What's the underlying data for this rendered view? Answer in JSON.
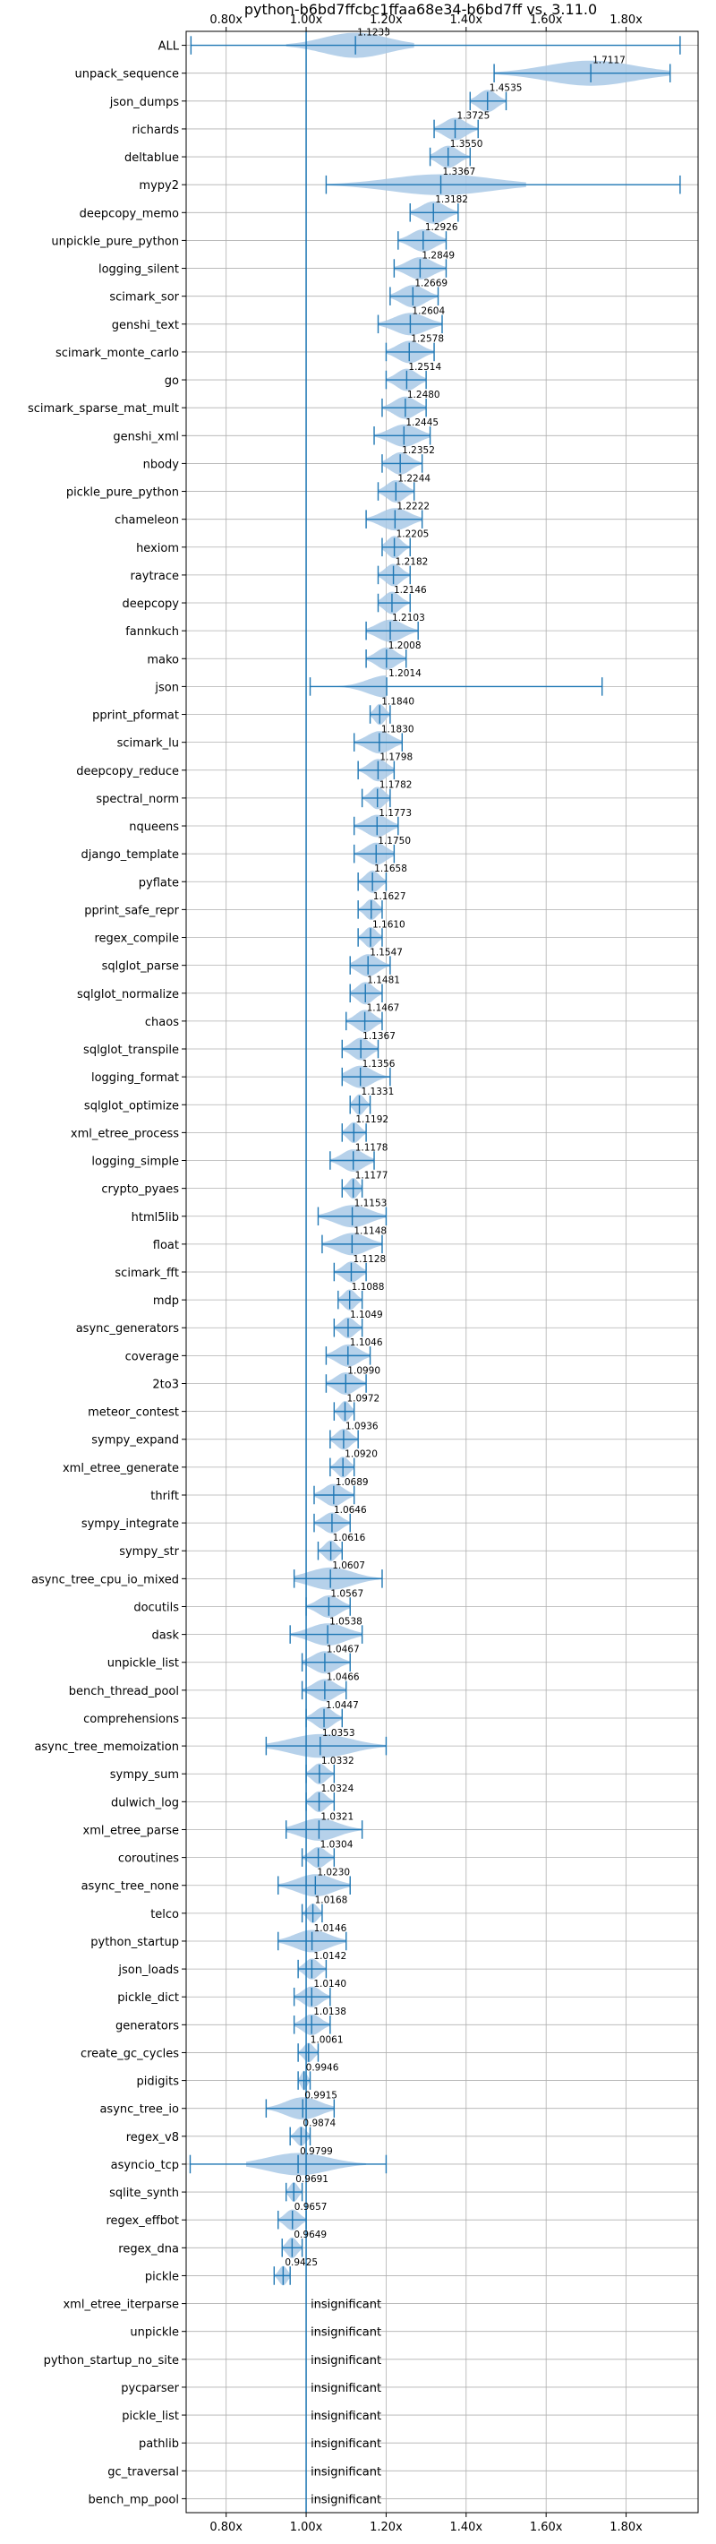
{
  "chart_data": {
    "type": "violin",
    "title": "python-b6bd7ffcbc1ffaa68e34-b6bd7ff vs. 3.11.0",
    "xlabel": "",
    "ylabel": "",
    "xlim": [
      0.7,
      1.98
    ],
    "x_ticks": [
      0.8,
      1.0,
      1.2,
      1.4,
      1.6,
      1.8
    ],
    "x_tick_labels": [
      "0.80x",
      "1.00x",
      "1.20x",
      "1.40x",
      "1.60x",
      "1.80x"
    ],
    "grid": true,
    "reference_line": 1.0,
    "insignificant_label": "insignificant",
    "colors": {
      "violin": "#a9c9e6",
      "line": "#1f77b4",
      "grid": "#b0b0b0"
    },
    "benchmarks": [
      {
        "name": "ALL",
        "value": "1.1233",
        "mean": 1.1233,
        "min": 0.712,
        "max": 1.935,
        "kde_lo": 0.95,
        "kde_hi": 1.27,
        "width": 0.9
      },
      {
        "name": "unpack_sequence",
        "value": "1.7117",
        "mean": 1.7117,
        "min": 1.47,
        "max": 1.91,
        "kde_lo": 1.47,
        "kde_hi": 1.91,
        "width": 0.9
      },
      {
        "name": "json_dumps",
        "value": "1.4535",
        "mean": 1.4535,
        "min": 1.41,
        "max": 1.5,
        "kde_lo": 1.41,
        "kde_hi": 1.5,
        "width": 0.8
      },
      {
        "name": "richards",
        "value": "1.3725",
        "mean": 1.3725,
        "min": 1.32,
        "max": 1.43,
        "kde_lo": 1.32,
        "kde_hi": 1.43,
        "width": 0.8
      },
      {
        "name": "deltablue",
        "value": "1.3550",
        "mean": 1.355,
        "min": 1.31,
        "max": 1.41,
        "kde_lo": 1.31,
        "kde_hi": 1.41,
        "width": 0.8
      },
      {
        "name": "mypy2",
        "value": "1.3367",
        "mean": 1.3367,
        "min": 1.05,
        "max": 1.935,
        "kde_lo": 1.05,
        "kde_hi": 1.55,
        "width": 0.75
      },
      {
        "name": "deepcopy_memo",
        "value": "1.3182",
        "mean": 1.3182,
        "min": 1.26,
        "max": 1.38,
        "kde_lo": 1.26,
        "kde_hi": 1.38,
        "width": 0.8
      },
      {
        "name": "unpickle_pure_python",
        "value": "1.2926",
        "mean": 1.2926,
        "min": 1.23,
        "max": 1.35,
        "kde_lo": 1.23,
        "kde_hi": 1.35,
        "width": 0.8
      },
      {
        "name": "logging_silent",
        "value": "1.2849",
        "mean": 1.2849,
        "min": 1.22,
        "max": 1.35,
        "kde_lo": 1.22,
        "kde_hi": 1.35,
        "width": 0.8
      },
      {
        "name": "scimark_sor",
        "value": "1.2669",
        "mean": 1.2669,
        "min": 1.21,
        "max": 1.33,
        "kde_lo": 1.21,
        "kde_hi": 1.33,
        "width": 0.8
      },
      {
        "name": "genshi_text",
        "value": "1.2604",
        "mean": 1.2604,
        "min": 1.18,
        "max": 1.34,
        "kde_lo": 1.18,
        "kde_hi": 1.34,
        "width": 0.8
      },
      {
        "name": "scimark_monte_carlo",
        "value": "1.2578",
        "mean": 1.2578,
        "min": 1.2,
        "max": 1.32,
        "kde_lo": 1.2,
        "kde_hi": 1.32,
        "width": 0.8
      },
      {
        "name": "go",
        "value": "1.2514",
        "mean": 1.2514,
        "min": 1.2,
        "max": 1.3,
        "kde_lo": 1.2,
        "kde_hi": 1.3,
        "width": 0.8
      },
      {
        "name": "scimark_sparse_mat_mult",
        "value": "1.2480",
        "mean": 1.248,
        "min": 1.19,
        "max": 1.3,
        "kde_lo": 1.19,
        "kde_hi": 1.3,
        "width": 0.8
      },
      {
        "name": "genshi_xml",
        "value": "1.2445",
        "mean": 1.2445,
        "min": 1.17,
        "max": 1.31,
        "kde_lo": 1.17,
        "kde_hi": 1.31,
        "width": 0.8
      },
      {
        "name": "nbody",
        "value": "1.2352",
        "mean": 1.2352,
        "min": 1.19,
        "max": 1.29,
        "kde_lo": 1.19,
        "kde_hi": 1.29,
        "width": 0.8
      },
      {
        "name": "pickle_pure_python",
        "value": "1.2244",
        "mean": 1.2244,
        "min": 1.18,
        "max": 1.27,
        "kde_lo": 1.18,
        "kde_hi": 1.27,
        "width": 0.8
      },
      {
        "name": "chameleon",
        "value": "1.2222",
        "mean": 1.2222,
        "min": 1.15,
        "max": 1.29,
        "kde_lo": 1.15,
        "kde_hi": 1.29,
        "width": 0.8
      },
      {
        "name": "hexiom",
        "value": "1.2205",
        "mean": 1.2205,
        "min": 1.19,
        "max": 1.26,
        "kde_lo": 1.19,
        "kde_hi": 1.26,
        "width": 0.8
      },
      {
        "name": "raytrace",
        "value": "1.2182",
        "mean": 1.2182,
        "min": 1.18,
        "max": 1.26,
        "kde_lo": 1.18,
        "kde_hi": 1.26,
        "width": 0.8
      },
      {
        "name": "deepcopy",
        "value": "1.2146",
        "mean": 1.2146,
        "min": 1.18,
        "max": 1.26,
        "kde_lo": 1.18,
        "kde_hi": 1.26,
        "width": 0.8
      },
      {
        "name": "fannkuch",
        "value": "1.2103",
        "mean": 1.2103,
        "min": 1.15,
        "max": 1.28,
        "kde_lo": 1.15,
        "kde_hi": 1.28,
        "width": 0.8
      },
      {
        "name": "mako",
        "value": "1.2008",
        "mean": 1.2008,
        "min": 1.15,
        "max": 1.25,
        "kde_lo": 1.15,
        "kde_hi": 1.25,
        "width": 0.8
      },
      {
        "name": "json",
        "value": "1.2014",
        "mean": 1.2014,
        "min": 1.01,
        "max": 1.74,
        "kde_lo": 1.01,
        "kde_hi": 1.2,
        "width": 0.8
      },
      {
        "name": "pprint_pformat",
        "value": "1.1840",
        "mean": 1.184,
        "min": 1.16,
        "max": 1.21,
        "kde_lo": 1.16,
        "kde_hi": 1.21,
        "width": 0.75
      },
      {
        "name": "scimark_lu",
        "value": "1.1830",
        "mean": 1.183,
        "min": 1.12,
        "max": 1.24,
        "kde_lo": 1.12,
        "kde_hi": 1.24,
        "width": 0.8
      },
      {
        "name": "deepcopy_reduce",
        "value": "1.1798",
        "mean": 1.1798,
        "min": 1.13,
        "max": 1.22,
        "kde_lo": 1.13,
        "kde_hi": 1.22,
        "width": 0.8
      },
      {
        "name": "spectral_norm",
        "value": "1.1782",
        "mean": 1.1782,
        "min": 1.14,
        "max": 1.21,
        "kde_lo": 1.14,
        "kde_hi": 1.21,
        "width": 0.8
      },
      {
        "name": "nqueens",
        "value": "1.1773",
        "mean": 1.1773,
        "min": 1.12,
        "max": 1.23,
        "kde_lo": 1.12,
        "kde_hi": 1.23,
        "width": 0.8
      },
      {
        "name": "django_template",
        "value": "1.1750",
        "mean": 1.175,
        "min": 1.12,
        "max": 1.22,
        "kde_lo": 1.12,
        "kde_hi": 1.22,
        "width": 0.8
      },
      {
        "name": "pyflate",
        "value": "1.1658",
        "mean": 1.1658,
        "min": 1.13,
        "max": 1.2,
        "kde_lo": 1.13,
        "kde_hi": 1.2,
        "width": 0.8
      },
      {
        "name": "pprint_safe_repr",
        "value": "1.1627",
        "mean": 1.1627,
        "min": 1.13,
        "max": 1.19,
        "kde_lo": 1.13,
        "kde_hi": 1.19,
        "width": 0.75
      },
      {
        "name": "regex_compile",
        "value": "1.1610",
        "mean": 1.161,
        "min": 1.13,
        "max": 1.19,
        "kde_lo": 1.13,
        "kde_hi": 1.19,
        "width": 0.75
      },
      {
        "name": "sqlglot_parse",
        "value": "1.1547",
        "mean": 1.1547,
        "min": 1.11,
        "max": 1.21,
        "kde_lo": 1.11,
        "kde_hi": 1.21,
        "width": 0.8
      },
      {
        "name": "sqlglot_normalize",
        "value": "1.1481",
        "mean": 1.1481,
        "min": 1.11,
        "max": 1.19,
        "kde_lo": 1.11,
        "kde_hi": 1.19,
        "width": 0.8
      },
      {
        "name": "chaos",
        "value": "1.1467",
        "mean": 1.1467,
        "min": 1.1,
        "max": 1.19,
        "kde_lo": 1.1,
        "kde_hi": 1.19,
        "width": 0.8
      },
      {
        "name": "sqlglot_transpile",
        "value": "1.1367",
        "mean": 1.1367,
        "min": 1.09,
        "max": 1.18,
        "kde_lo": 1.09,
        "kde_hi": 1.18,
        "width": 0.8
      },
      {
        "name": "logging_format",
        "value": "1.1356",
        "mean": 1.1356,
        "min": 1.09,
        "max": 1.21,
        "kde_lo": 1.09,
        "kde_hi": 1.21,
        "width": 0.8
      },
      {
        "name": "sqlglot_optimize",
        "value": "1.1331",
        "mean": 1.1331,
        "min": 1.11,
        "max": 1.16,
        "kde_lo": 1.11,
        "kde_hi": 1.16,
        "width": 0.75
      },
      {
        "name": "xml_etree_process",
        "value": "1.1192",
        "mean": 1.1192,
        "min": 1.09,
        "max": 1.15,
        "kde_lo": 1.09,
        "kde_hi": 1.15,
        "width": 0.75
      },
      {
        "name": "logging_simple",
        "value": "1.1178",
        "mean": 1.1178,
        "min": 1.06,
        "max": 1.17,
        "kde_lo": 1.06,
        "kde_hi": 1.17,
        "width": 0.8
      },
      {
        "name": "crypto_pyaes",
        "value": "1.1177",
        "mean": 1.1177,
        "min": 1.09,
        "max": 1.14,
        "kde_lo": 1.09,
        "kde_hi": 1.14,
        "width": 0.75
      },
      {
        "name": "html5lib",
        "value": "1.1153",
        "mean": 1.1153,
        "min": 1.03,
        "max": 1.2,
        "kde_lo": 1.03,
        "kde_hi": 1.2,
        "width": 0.8
      },
      {
        "name": "float",
        "value": "1.1148",
        "mean": 1.1148,
        "min": 1.04,
        "max": 1.19,
        "kde_lo": 1.04,
        "kde_hi": 1.19,
        "width": 0.8
      },
      {
        "name": "scimark_fft",
        "value": "1.1128",
        "mean": 1.1128,
        "min": 1.07,
        "max": 1.15,
        "kde_lo": 1.07,
        "kde_hi": 1.15,
        "width": 0.75
      },
      {
        "name": "mdp",
        "value": "1.1088",
        "mean": 1.1088,
        "min": 1.08,
        "max": 1.14,
        "kde_lo": 1.08,
        "kde_hi": 1.14,
        "width": 0.75
      },
      {
        "name": "async_generators",
        "value": "1.1049",
        "mean": 1.1049,
        "min": 1.07,
        "max": 1.14,
        "kde_lo": 1.07,
        "kde_hi": 1.14,
        "width": 0.75
      },
      {
        "name": "coverage",
        "value": "1.1046",
        "mean": 1.1046,
        "min": 1.05,
        "max": 1.16,
        "kde_lo": 1.05,
        "kde_hi": 1.16,
        "width": 0.8
      },
      {
        "name": "2to3",
        "value": "1.0990",
        "mean": 1.099,
        "min": 1.05,
        "max": 1.15,
        "kde_lo": 1.05,
        "kde_hi": 1.15,
        "width": 0.8
      },
      {
        "name": "meteor_contest",
        "value": "1.0972",
        "mean": 1.0972,
        "min": 1.07,
        "max": 1.12,
        "kde_lo": 1.07,
        "kde_hi": 1.12,
        "width": 0.75
      },
      {
        "name": "sympy_expand",
        "value": "1.0936",
        "mean": 1.0936,
        "min": 1.06,
        "max": 1.13,
        "kde_lo": 1.06,
        "kde_hi": 1.13,
        "width": 0.75
      },
      {
        "name": "xml_etree_generate",
        "value": "1.0920",
        "mean": 1.092,
        "min": 1.06,
        "max": 1.12,
        "kde_lo": 1.06,
        "kde_hi": 1.12,
        "width": 0.75
      },
      {
        "name": "thrift",
        "value": "1.0689",
        "mean": 1.0689,
        "min": 1.02,
        "max": 1.12,
        "kde_lo": 1.02,
        "kde_hi": 1.12,
        "width": 0.8
      },
      {
        "name": "sympy_integrate",
        "value": "1.0646",
        "mean": 1.0646,
        "min": 1.02,
        "max": 1.11,
        "kde_lo": 1.02,
        "kde_hi": 1.11,
        "width": 0.75
      },
      {
        "name": "sympy_str",
        "value": "1.0616",
        "mean": 1.0616,
        "min": 1.03,
        "max": 1.09,
        "kde_lo": 1.03,
        "kde_hi": 1.09,
        "width": 0.75
      },
      {
        "name": "async_tree_cpu_io_mixed",
        "value": "1.0607",
        "mean": 1.0607,
        "min": 0.97,
        "max": 1.19,
        "kde_lo": 0.97,
        "kde_hi": 1.19,
        "width": 0.8
      },
      {
        "name": "docutils",
        "value": "1.0567",
        "mean": 1.0567,
        "min": 1.0,
        "max": 1.11,
        "kde_lo": 1.0,
        "kde_hi": 1.11,
        "width": 0.8
      },
      {
        "name": "dask",
        "value": "1.0538",
        "mean": 1.0538,
        "min": 0.96,
        "max": 1.14,
        "kde_lo": 0.96,
        "kde_hi": 1.14,
        "width": 0.8
      },
      {
        "name": "unpickle_list",
        "value": "1.0467",
        "mean": 1.0467,
        "min": 0.99,
        "max": 1.11,
        "kde_lo": 0.99,
        "kde_hi": 1.11,
        "width": 0.8
      },
      {
        "name": "bench_thread_pool",
        "value": "1.0466",
        "mean": 1.0466,
        "min": 0.99,
        "max": 1.1,
        "kde_lo": 0.99,
        "kde_hi": 1.1,
        "width": 0.8
      },
      {
        "name": "comprehensions",
        "value": "1.0447",
        "mean": 1.0447,
        "min": 1.0,
        "max": 1.09,
        "kde_lo": 1.0,
        "kde_hi": 1.09,
        "width": 0.8
      },
      {
        "name": "async_tree_memoization",
        "value": "1.0353",
        "mean": 1.0353,
        "min": 0.9,
        "max": 1.2,
        "kde_lo": 0.9,
        "kde_hi": 1.2,
        "width": 0.85
      },
      {
        "name": "sympy_sum",
        "value": "1.0332",
        "mean": 1.0332,
        "min": 1.0,
        "max": 1.07,
        "kde_lo": 1.0,
        "kde_hi": 1.07,
        "width": 0.75
      },
      {
        "name": "dulwich_log",
        "value": "1.0324",
        "mean": 1.0324,
        "min": 1.0,
        "max": 1.07,
        "kde_lo": 1.0,
        "kde_hi": 1.07,
        "width": 0.75
      },
      {
        "name": "xml_etree_parse",
        "value": "1.0321",
        "mean": 1.0321,
        "min": 0.95,
        "max": 1.14,
        "kde_lo": 0.95,
        "kde_hi": 1.14,
        "width": 0.8
      },
      {
        "name": "coroutines",
        "value": "1.0304",
        "mean": 1.0304,
        "min": 0.99,
        "max": 1.07,
        "kde_lo": 0.99,
        "kde_hi": 1.07,
        "width": 0.75
      },
      {
        "name": "async_tree_none",
        "value": "1.0230",
        "mean": 1.023,
        "min": 0.93,
        "max": 1.11,
        "kde_lo": 0.93,
        "kde_hi": 1.11,
        "width": 0.8
      },
      {
        "name": "telco",
        "value": "1.0168",
        "mean": 1.0168,
        "min": 0.99,
        "max": 1.04,
        "kde_lo": 0.99,
        "kde_hi": 1.04,
        "width": 0.7
      },
      {
        "name": "python_startup",
        "value": "1.0146",
        "mean": 1.0146,
        "min": 0.93,
        "max": 1.1,
        "kde_lo": 0.93,
        "kde_hi": 1.1,
        "width": 0.8
      },
      {
        "name": "json_loads",
        "value": "1.0142",
        "mean": 1.0142,
        "min": 0.98,
        "max": 1.05,
        "kde_lo": 0.98,
        "kde_hi": 1.05,
        "width": 0.75
      },
      {
        "name": "pickle_dict",
        "value": "1.0140",
        "mean": 1.014,
        "min": 0.97,
        "max": 1.06,
        "kde_lo": 0.97,
        "kde_hi": 1.06,
        "width": 0.75
      },
      {
        "name": "generators",
        "value": "1.0138",
        "mean": 1.0138,
        "min": 0.97,
        "max": 1.06,
        "kde_lo": 0.97,
        "kde_hi": 1.06,
        "width": 0.75
      },
      {
        "name": "create_gc_cycles",
        "value": "1.0061",
        "mean": 1.0061,
        "min": 0.98,
        "max": 1.03,
        "kde_lo": 0.98,
        "kde_hi": 1.03,
        "width": 0.7
      },
      {
        "name": "pidigits",
        "value": "0.9946",
        "mean": 0.9946,
        "min": 0.98,
        "max": 1.01,
        "kde_lo": 0.98,
        "kde_hi": 1.01,
        "width": 0.7
      },
      {
        "name": "async_tree_io",
        "value": "0.9915",
        "mean": 0.9915,
        "min": 0.9,
        "max": 1.07,
        "kde_lo": 0.9,
        "kde_hi": 1.07,
        "width": 0.8
      },
      {
        "name": "regex_v8",
        "value": "0.9874",
        "mean": 0.9874,
        "min": 0.96,
        "max": 1.01,
        "kde_lo": 0.96,
        "kde_hi": 1.01,
        "width": 0.7
      },
      {
        "name": "asyncio_tcp",
        "value": "0.9799",
        "mean": 0.9799,
        "min": 0.71,
        "max": 1.2,
        "kde_lo": 0.85,
        "kde_hi": 1.15,
        "width": 0.8
      },
      {
        "name": "sqlite_synth",
        "value": "0.9691",
        "mean": 0.9691,
        "min": 0.95,
        "max": 0.99,
        "kde_lo": 0.95,
        "kde_hi": 0.99,
        "width": 0.7
      },
      {
        "name": "regex_effbot",
        "value": "0.9657",
        "mean": 0.9657,
        "min": 0.93,
        "max": 1.0,
        "kde_lo": 0.93,
        "kde_hi": 1.0,
        "width": 0.75
      },
      {
        "name": "regex_dna",
        "value": "0.9649",
        "mean": 0.9649,
        "min": 0.94,
        "max": 0.99,
        "kde_lo": 0.94,
        "kde_hi": 0.99,
        "width": 0.75
      },
      {
        "name": "pickle",
        "value": "0.9425",
        "mean": 0.9425,
        "min": 0.92,
        "max": 0.96,
        "kde_lo": 0.92,
        "kde_hi": 0.96,
        "width": 0.7
      },
      {
        "name": "xml_etree_iterparse",
        "value": "insignificant"
      },
      {
        "name": "unpickle",
        "value": "insignificant"
      },
      {
        "name": "python_startup_no_site",
        "value": "insignificant"
      },
      {
        "name": "pycparser",
        "value": "insignificant"
      },
      {
        "name": "pickle_list",
        "value": "insignificant"
      },
      {
        "name": "pathlib",
        "value": "insignificant"
      },
      {
        "name": "gc_traversal",
        "value": "insignificant"
      },
      {
        "name": "bench_mp_pool",
        "value": "insignificant"
      }
    ]
  }
}
